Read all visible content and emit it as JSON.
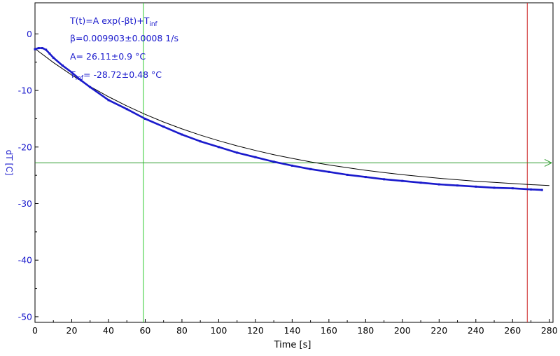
{
  "fit_annotation": {
    "formula_main": "T(t)=A exp(-βt)+T",
    "formula_sub": "inf",
    "beta": "β=0.009903±0.0008 1/s",
    "amplitude": "A= 26.11±0.9 °C",
    "tinf_sym": "T",
    "tinf_sub": "inf",
    "tinf_val": "= -28.72±0.48 °C"
  },
  "colors": {
    "data": "#1a1acc",
    "fit": "#000000",
    "cursor_vertical_green": "#2ecc2e",
    "cursor_horizontal_green": "#2a9a2a",
    "cursor_vertical_red": "#cc2222",
    "axis_text": "#1a1acc"
  },
  "chart_data": {
    "type": "line",
    "title": "",
    "xlabel": "Time [s]",
    "ylabel": "dT [C]",
    "xlim": [
      0,
      282
    ],
    "ylim": [
      -51,
      5.5
    ],
    "x_ticks": [
      0,
      20,
      40,
      60,
      80,
      100,
      120,
      140,
      160,
      180,
      200,
      220,
      240,
      260,
      280
    ],
    "y_ticks": [
      0,
      -10,
      -20,
      -30,
      -40,
      -50
    ],
    "fit": {
      "A": 26.11,
      "beta": 0.009903,
      "T_inf": -28.72
    },
    "series": [
      {
        "style": "measured-markers",
        "x": [
          0,
          2,
          4,
          6,
          8,
          10,
          15,
          20,
          25,
          30,
          40,
          50,
          60,
          70,
          80,
          90,
          100,
          110,
          120,
          130,
          140,
          150,
          160,
          170,
          180,
          190,
          200,
          210,
          220,
          230,
          240,
          250,
          260,
          270,
          276
        ],
        "y": [
          -2.7,
          -2.5,
          -2.5,
          -2.8,
          -3.5,
          -4.2,
          -5.6,
          -6.8,
          -8.2,
          -9.4,
          -11.7,
          -13.3,
          -15.0,
          -16.4,
          -17.8,
          -19.0,
          -20.0,
          -21.0,
          -21.8,
          -22.6,
          -23.3,
          -23.9,
          -24.4,
          -24.9,
          -25.3,
          -25.7,
          -26.0,
          -26.3,
          -26.6,
          -26.8,
          -27.0,
          -27.2,
          -27.3,
          -27.5,
          -27.6
        ]
      },
      {
        "style": "fit-curve",
        "x": [
          0,
          10,
          20,
          30,
          40,
          50,
          60,
          70,
          80,
          90,
          100,
          110,
          120,
          130,
          140,
          150,
          160,
          170,
          180,
          190,
          200,
          210,
          220,
          230,
          240,
          250,
          260,
          270,
          280
        ],
        "y": [
          -2.61,
          -5.06,
          -7.28,
          -9.29,
          -11.1,
          -12.74,
          -14.23,
          -15.57,
          -16.79,
          -17.89,
          -18.89,
          -19.79,
          -20.61,
          -21.35,
          -22.01,
          -22.62,
          -23.17,
          -23.66,
          -24.11,
          -24.52,
          -24.88,
          -25.22,
          -25.52,
          -25.79,
          -26.04,
          -26.26,
          -26.46,
          -26.65,
          -26.81
        ]
      }
    ],
    "cursors": {
      "vertical_green_x": 59,
      "vertical_red_x": 268,
      "horizontal_green_y": -22.8
    }
  }
}
